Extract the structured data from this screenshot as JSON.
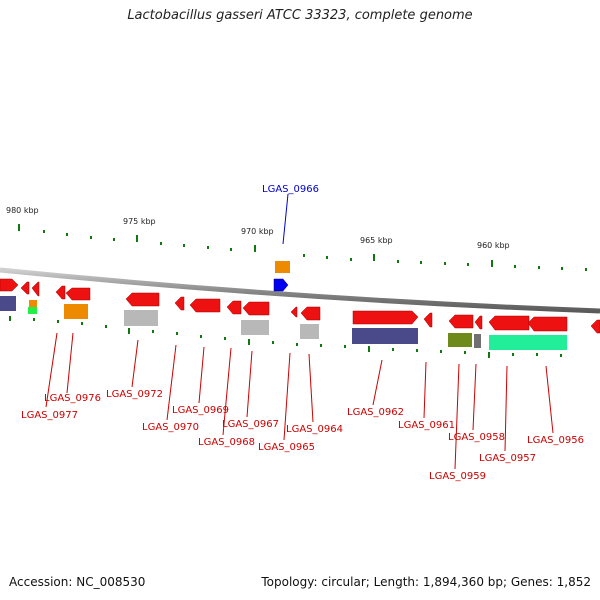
{
  "title": "Lactobacillus gasseri ATCC 33323, complete genome",
  "footer": {
    "accession": "Accession: NC_008530",
    "topology": "Topology: circular; Length: 1,894,360 bp; Genes: 1,852"
  },
  "colors": {
    "highlight_label": "#0000cc",
    "gene_label": "#cc0000",
    "gene": "#ee1111",
    "tick": "#117711",
    "backbone": "#8a8a8a",
    "selected_gene": "#0000ee",
    "cog_orange": "#ee8a00",
    "cog_purple": "#4a4a8a",
    "cog_gray": "#b8b8b8",
    "cog_olive": "#6e8a1a",
    "cog_green": "#22ee99",
    "cog_darkgray": "#707070"
  },
  "scale_labels": [
    "980 kbp",
    "975 kbp",
    "970 kbp",
    "965 kbp",
    "960 kbp"
  ],
  "highlight_label": "LGAS_0966",
  "gene_labels": [
    "LGAS_0976",
    "LGAS_0977",
    "LGAS_0972",
    "LGAS_0969",
    "LGAS_0970",
    "LGAS_0967",
    "LGAS_0968",
    "LGAS_0964",
    "LGAS_0965",
    "LGAS_0962",
    "LGAS_0961",
    "LGAS_0958",
    "LGAS_0959",
    "LGAS_0957",
    "LGAS_0956"
  ]
}
